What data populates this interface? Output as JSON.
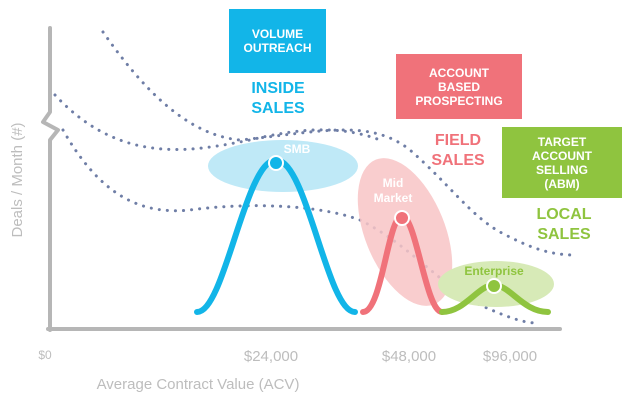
{
  "axes": {
    "y_label": "Deals / Month (#)",
    "x_label": "Average Contract Value (ACV)",
    "ticks": [
      "$0",
      "$24,000",
      "$48,000",
      "$96,000"
    ]
  },
  "colors": {
    "axis": "#b6b6b6",
    "axis_text": "#bdbdbd",
    "dots": "#6f7ea6",
    "blue": "#12b5e8",
    "blue_light": "#bfe9f7",
    "red": "#f0727a",
    "red_light": "#f8c4c6",
    "green": "#8fc43f",
    "green_light": "#d7eab7"
  },
  "boxes": {
    "volume": {
      "line1": "VOLUME",
      "line2": "OUTREACH"
    },
    "abp": {
      "line1": "ACCOUNT",
      "line2": "BASED",
      "line3": "PROSPECTING"
    },
    "tas": {
      "line1": "TARGET",
      "line2": "ACCOUNT",
      "line3": "SELLING",
      "line4": "(ABM)"
    }
  },
  "segments": {
    "inside": {
      "line1": "INSIDE",
      "line2": "SALES"
    },
    "field": {
      "line1": "FIELD",
      "line2": "SALES"
    },
    "local": {
      "line1": "LOCAL",
      "line2": "SALES"
    }
  },
  "clusters": {
    "smb": "SMB",
    "mid_line1": "Mid",
    "mid_line2": "Market",
    "enterprise": "Enterprise"
  }
}
